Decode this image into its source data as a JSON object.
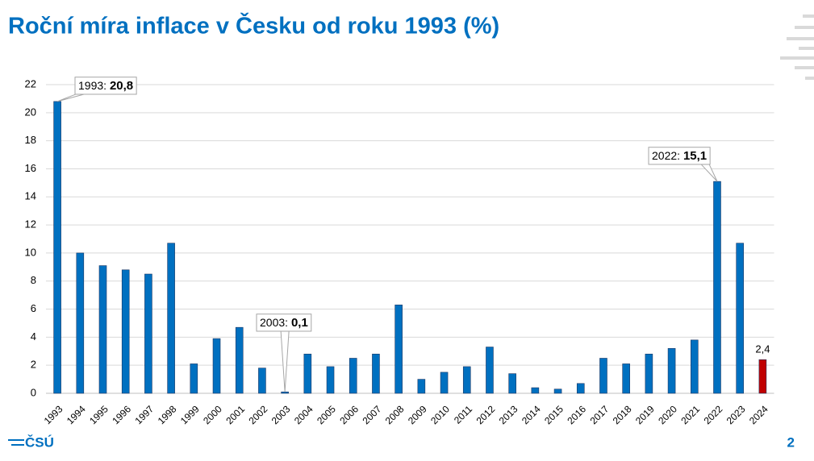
{
  "slide": {
    "logo": "ČSÚ",
    "page_number": "2"
  },
  "chart_data": {
    "type": "bar",
    "title": "Roční míra inflace v Česku od roku 1993 (%)",
    "categories": [
      "1993",
      "1994",
      "1995",
      "1996",
      "1997",
      "1998",
      "1999",
      "2000",
      "2001",
      "2002",
      "2003",
      "2004",
      "2005",
      "2006",
      "2007",
      "2008",
      "2009",
      "2010",
      "2011",
      "2012",
      "2013",
      "2014",
      "2015",
      "2016",
      "2017",
      "2018",
      "2019",
      "2020",
      "2021",
      "2022",
      "2023",
      "2024"
    ],
    "values": [
      20.8,
      10.0,
      9.1,
      8.8,
      8.5,
      10.7,
      2.1,
      3.9,
      4.7,
      1.8,
      0.1,
      2.8,
      1.9,
      2.5,
      2.8,
      6.3,
      1.0,
      1.5,
      1.9,
      3.3,
      1.4,
      0.4,
      0.3,
      0.7,
      2.5,
      2.1,
      2.8,
      3.2,
      3.8,
      15.1,
      10.7,
      2.4
    ],
    "value_labels": [
      "20,8",
      null,
      null,
      null,
      null,
      null,
      null,
      null,
      null,
      null,
      "0,1",
      null,
      null,
      null,
      null,
      null,
      null,
      null,
      null,
      null,
      null,
      null,
      null,
      null,
      null,
      null,
      null,
      null,
      null,
      "15,1",
      null,
      "2,4"
    ],
    "callout_texts": [
      "1993:",
      null,
      null,
      null,
      null,
      null,
      null,
      null,
      null,
      null,
      "2003:",
      null,
      null,
      null,
      null,
      null,
      null,
      null,
      null,
      null,
      null,
      null,
      null,
      null,
      null,
      null,
      null,
      null,
      null,
      "2022:",
      null,
      null
    ],
    "colors": [
      "#0070c0",
      "#0070c0",
      "#0070c0",
      "#0070c0",
      "#0070c0",
      "#0070c0",
      "#0070c0",
      "#0070c0",
      "#0070c0",
      "#0070c0",
      "#0070c0",
      "#0070c0",
      "#0070c0",
      "#0070c0",
      "#0070c0",
      "#0070c0",
      "#0070c0",
      "#0070c0",
      "#0070c0",
      "#0070c0",
      "#0070c0",
      "#0070c0",
      "#0070c0",
      "#0070c0",
      "#0070c0",
      "#0070c0",
      "#0070c0",
      "#0070c0",
      "#0070c0",
      "#0070c0",
      "#0070c0",
      "#c00000"
    ],
    "ylim": [
      0,
      22
    ],
    "yticks": [
      0,
      2,
      4,
      6,
      8,
      10,
      12,
      14,
      16,
      18,
      20,
      22
    ],
    "grid": true
  }
}
